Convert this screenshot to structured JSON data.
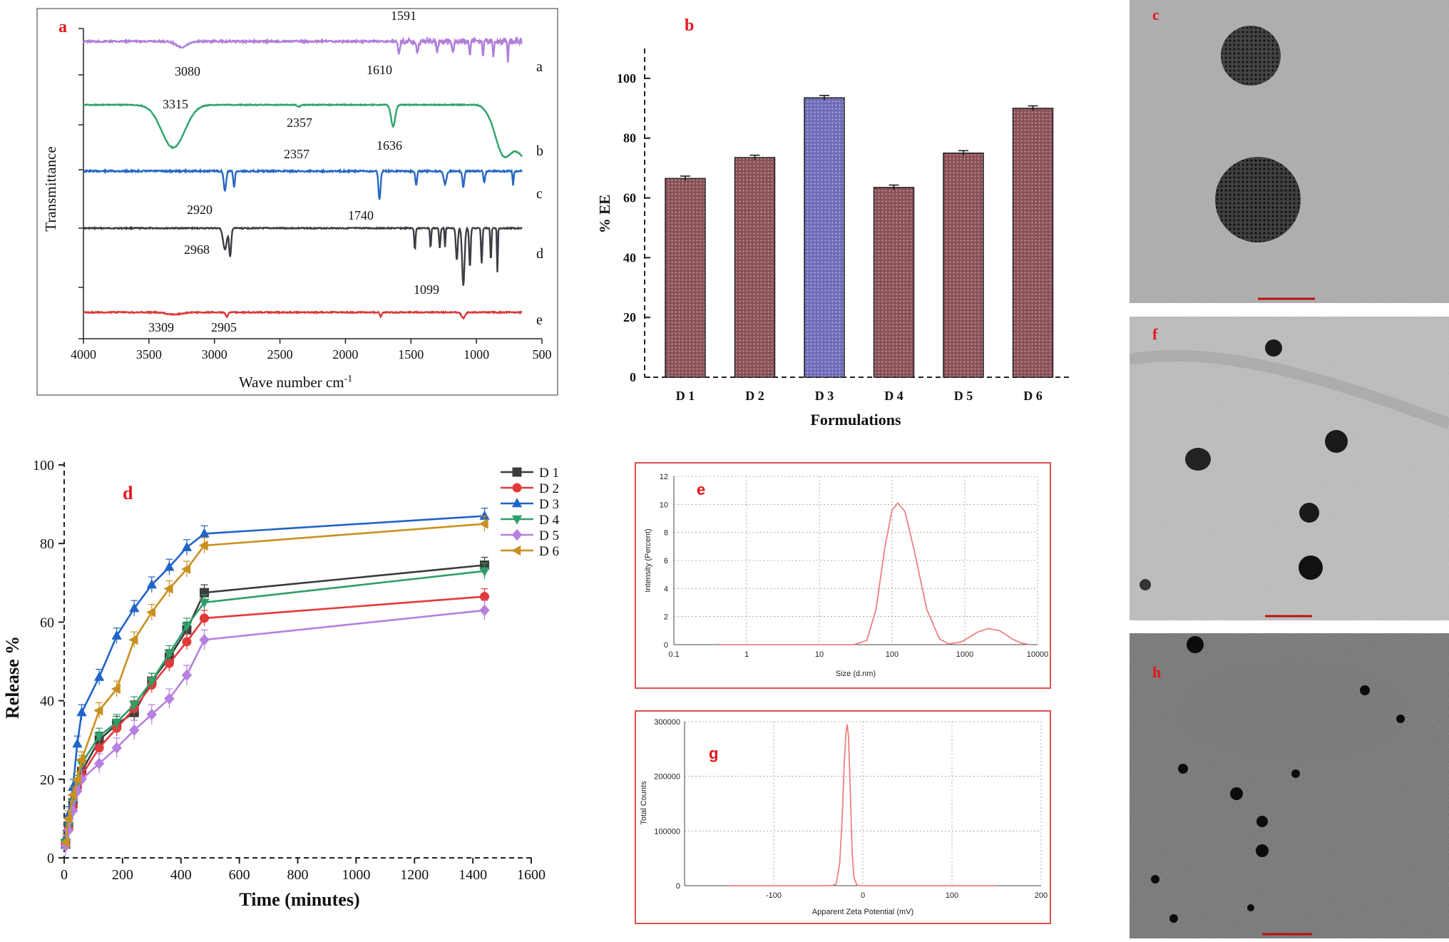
{
  "chart_data": [
    {
      "panel": "a",
      "type": "line",
      "xlabel": "Wave number cm",
      "xlabel_sup": "-1",
      "ylabel": "Transmittance",
      "xlim": [
        4000,
        500
      ],
      "x_ticks": [
        4000,
        3500,
        3000,
        2500,
        2000,
        1500,
        1000,
        500
      ],
      "series": [
        {
          "name": "a",
          "color": "#b07ed8"
        },
        {
          "name": "b",
          "color": "#2ea36b"
        },
        {
          "name": "c",
          "color": "#2767c2"
        },
        {
          "name": "d",
          "color": "#3d3d44"
        },
        {
          "name": "e",
          "color": "#d93a3a"
        }
      ],
      "annotations": [
        "1591",
        "3080",
        "1610",
        "3315",
        "2357",
        "1636",
        "2357",
        "2920",
        "1740",
        "2968",
        "1099",
        "3309",
        "2905"
      ]
    },
    {
      "panel": "b",
      "type": "bar",
      "categories": [
        "D 1",
        "D 2",
        "D 3",
        "D 4",
        "D 5",
        "D 6"
      ],
      "values": [
        66.5,
        73.5,
        93.5,
        63.5,
        75,
        90
      ],
      "errors": [
        0.8,
        0.8,
        0.8,
        0.8,
        0.8,
        0.8
      ],
      "colors": [
        "#8b5158",
        "#8b5158",
        "#7a79c0",
        "#8b5158",
        "#8b5158",
        "#8b5158"
      ],
      "xlabel": "Formulations",
      "ylabel": "% EE",
      "ylim": [
        0,
        110
      ],
      "y_ticks": [
        0,
        20,
        40,
        60,
        80,
        100
      ]
    },
    {
      "panel": "d",
      "type": "line",
      "xlabel": "Time (minutes)",
      "ylabel": "Release %",
      "xlim": [
        0,
        1600
      ],
      "ylim": [
        0,
        100
      ],
      "x_ticks": [
        0,
        200,
        400,
        600,
        800,
        1000,
        1200,
        1400,
        1600
      ],
      "y_ticks": [
        0,
        20,
        40,
        60,
        80,
        100
      ],
      "legend": "top-right",
      "x": [
        5,
        15,
        30,
        45,
        60,
        120,
        180,
        240,
        300,
        360,
        420,
        480,
        1440
      ],
      "series": [
        {
          "name": "D 1",
          "color": "#3b3b3b",
          "marker": "square",
          "values": [
            3.5,
            8,
            14,
            19,
            22,
            30,
            34,
            37,
            45,
            51,
            58,
            67.5,
            74.5
          ],
          "error": 2
        },
        {
          "name": "D 2",
          "color": "#e23a3a",
          "marker": "circle",
          "values": [
            3.5,
            7.5,
            13,
            18,
            21,
            28,
            33,
            38,
            44,
            49.5,
            55,
            61,
            66.5
          ],
          "error": 2
        },
        {
          "name": "D 3",
          "color": "#2164c8",
          "marker": "triangle-up",
          "values": [
            5,
            11,
            18,
            29,
            37,
            46,
            56.5,
            63.5,
            69.5,
            74,
            79,
            82.5,
            87
          ],
          "error": 2
        },
        {
          "name": "D 4",
          "color": "#2e9e68",
          "marker": "triangle-down",
          "values": [
            4,
            8,
            14,
            19,
            24,
            31,
            34.5,
            39,
            45,
            52,
            59,
            65,
            73
          ],
          "error": 2
        },
        {
          "name": "D 5",
          "color": "#b580e0",
          "marker": "diamond",
          "values": [
            3,
            7,
            12,
            17,
            20,
            24,
            28,
            32.5,
            36.5,
            40.5,
            46.5,
            55.5,
            63
          ],
          "error": 2.5
        },
        {
          "name": "D 6",
          "color": "#c89020",
          "marker": "triangle-left",
          "values": [
            4,
            10,
            16,
            20,
            25,
            37.5,
            43,
            55.5,
            62.5,
            68.5,
            73.5,
            79.5,
            85
          ],
          "error": 2
        }
      ]
    },
    {
      "panel": "e",
      "type": "line",
      "xlabel": "Size (d.nm)",
      "ylabel": "Intensity (Percent)",
      "xscale": "log",
      "xlim": [
        0.1,
        10000
      ],
      "ylim": [
        0,
        12
      ],
      "x_tick_labels": [
        "0.1",
        "1",
        "10",
        "100",
        "1000",
        "10000"
      ],
      "y_ticks": [
        0,
        2,
        4,
        6,
        8,
        10,
        12
      ],
      "grid": true,
      "x": [
        0.4,
        30,
        45,
        60,
        80,
        100,
        120,
        150,
        200,
        300,
        450,
        600,
        900,
        1500,
        2100,
        3000,
        4500,
        6000,
        8000
      ],
      "values": [
        0,
        0,
        0.3,
        2.5,
        7,
        9.6,
        10.1,
        9.5,
        6.8,
        2.5,
        0.4,
        0.05,
        0.2,
        0.9,
        1.15,
        1.0,
        0.4,
        0.1,
        0
      ]
    },
    {
      "panel": "g",
      "type": "line",
      "xlabel": "Apparent Zeta Potential (mV)",
      "ylabel": "Total Counts",
      "xlim": [
        -200,
        200
      ],
      "ylim": [
        0,
        300000
      ],
      "x_tick_labels": [
        "-100",
        "0",
        "100",
        "200"
      ],
      "y_tick_labels": [
        "0",
        "100000",
        "200000",
        "300000"
      ],
      "grid": true,
      "x": [
        -150,
        -35,
        -30,
        -26,
        -23,
        -21,
        -19,
        -17.5,
        -16,
        -14,
        -12,
        -10,
        -7,
        -5,
        150
      ],
      "values": [
        0,
        0,
        3000,
        40000,
        130000,
        220000,
        280000,
        295000,
        270000,
        170000,
        60000,
        15000,
        2000,
        0,
        0
      ]
    }
  ],
  "panel_labels": {
    "a": "a",
    "b": "b",
    "c": "c",
    "d": "d",
    "e": "e",
    "f": "f",
    "g": "g",
    "h": "h"
  },
  "label_color": "#e8151b"
}
